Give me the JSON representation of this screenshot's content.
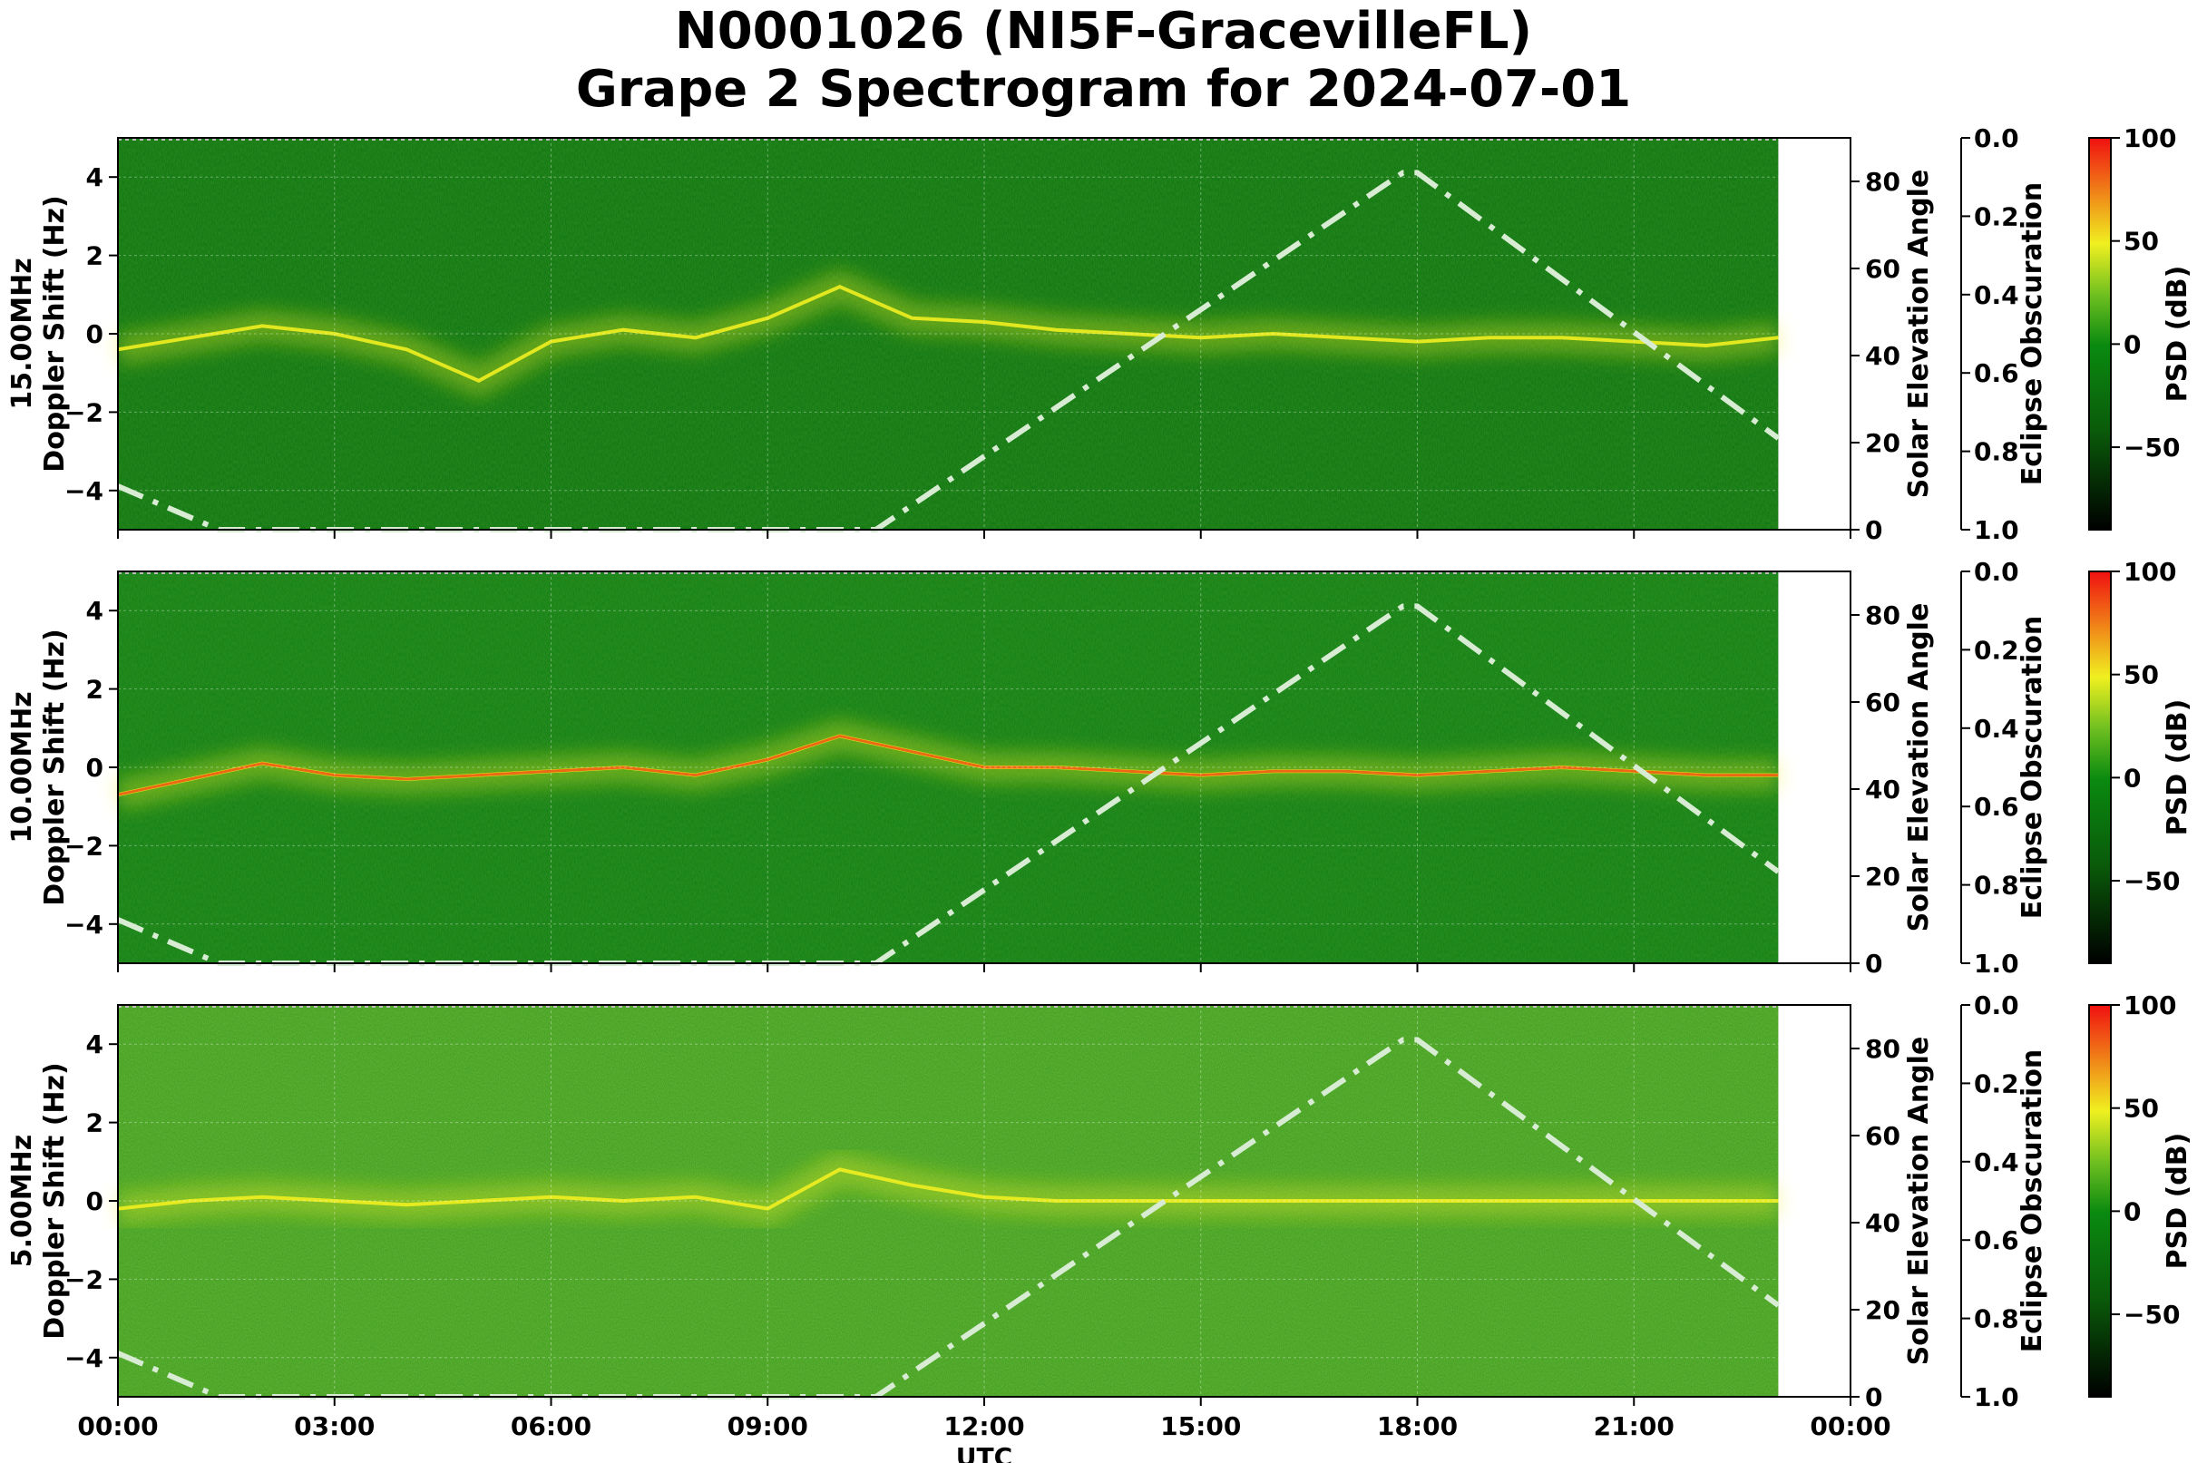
{
  "title": {
    "line1": "N0001026 (NI5F-GracevilleFL)",
    "line2": "Grape 2 Spectrogram for 2024-07-01"
  },
  "xaxis": {
    "label": "UTC",
    "ticks": [
      "00:00",
      "03:00",
      "06:00",
      "09:00",
      "12:00",
      "15:00",
      "18:00",
      "21:00",
      "00:00"
    ],
    "range_hours": [
      0,
      24
    ],
    "data_end_hours": 23
  },
  "right_axes": {
    "solar_label": "Solar Elevation Angle",
    "solar_ticks": [
      "0",
      "20",
      "40",
      "60",
      "80"
    ],
    "solar_range": [
      0,
      90
    ],
    "eclipse_label": "Eclipse Obscuration",
    "eclipse_ticks": [
      "0.0",
      "0.2",
      "0.4",
      "0.6",
      "0.8",
      "1.0"
    ],
    "psd_label": "PSD (dB)",
    "psd_ticks": [
      "100",
      "50",
      "0",
      "−50"
    ],
    "psd_range": [
      -90,
      100
    ]
  },
  "colors": {
    "background_green": "#0a7a10",
    "mid_green": "#3aa020",
    "yellow": "#f0f020",
    "red": "#f03010",
    "solar_curve": "#d8ecd4"
  },
  "chart_data": [
    {
      "type": "heatmap",
      "panel": "15MHz",
      "ylabel_line1": "15.00MHz",
      "ylabel_line2": "Doppler Shift (Hz)",
      "ylim": [
        -5,
        5
      ],
      "yticks": [
        "4",
        "2",
        "0",
        "−2",
        "−4"
      ],
      "background": "#0b7410",
      "solar_elevation": {
        "x_hours": [
          0,
          1.4,
          10.5,
          17.8,
          18.0,
          23
        ],
        "y_deg": [
          10,
          0,
          0,
          82,
          82,
          21
        ]
      },
      "trace": {
        "x_hours": [
          0,
          1,
          2,
          3,
          4,
          5,
          6,
          7,
          8,
          9,
          10,
          11,
          12,
          13,
          14,
          15,
          16,
          17,
          18,
          19,
          20,
          21,
          22,
          23
        ],
        "y_hz": [
          -0.4,
          -0.1,
          0.2,
          0.0,
          -0.4,
          -1.2,
          -0.2,
          0.1,
          -0.1,
          0.4,
          1.2,
          0.4,
          0.3,
          0.1,
          0.0,
          -0.1,
          0.0,
          -0.1,
          -0.2,
          -0.1,
          -0.1,
          -0.2,
          -0.3,
          -0.1
        ]
      }
    },
    {
      "type": "heatmap",
      "panel": "10MHz",
      "ylabel_line1": "10.00MHz",
      "ylabel_line2": "Doppler Shift (Hz)",
      "ylim": [
        -5,
        5
      ],
      "yticks": [
        "4",
        "2",
        "0",
        "−2",
        "−4"
      ],
      "background": "#0f7e14",
      "solar_elevation": {
        "x_hours": [
          0,
          1.4,
          10.5,
          17.8,
          18.0,
          23
        ],
        "y_deg": [
          10,
          0,
          0,
          82,
          82,
          21
        ]
      },
      "trace": {
        "x_hours": [
          0,
          1,
          2,
          3,
          4,
          5,
          6,
          7,
          8,
          9,
          10,
          11,
          12,
          13,
          14,
          15,
          16,
          17,
          18,
          19,
          20,
          21,
          22,
          23
        ],
        "y_hz": [
          -0.7,
          -0.3,
          0.1,
          -0.2,
          -0.3,
          -0.2,
          -0.1,
          0.0,
          -0.2,
          0.2,
          0.8,
          0.4,
          0.0,
          0.0,
          -0.1,
          -0.2,
          -0.1,
          -0.1,
          -0.2,
          -0.1,
          0.0,
          -0.1,
          -0.2,
          -0.2
        ]
      }
    },
    {
      "type": "heatmap",
      "panel": "5MHz",
      "ylabel_line1": "5.00MHz",
      "ylabel_line2": "Doppler Shift (Hz)",
      "ylim": [
        -5,
        5
      ],
      "yticks": [
        "4",
        "2",
        "0",
        "−2",
        "−4"
      ],
      "background": "#3a9a1e",
      "solar_elevation": {
        "x_hours": [
          0,
          1.4,
          10.5,
          17.8,
          18.0,
          23
        ],
        "y_deg": [
          10,
          0,
          0,
          82,
          82,
          21
        ]
      },
      "trace": {
        "x_hours": [
          0,
          1,
          2,
          3,
          4,
          5,
          6,
          7,
          8,
          9,
          10,
          11,
          12,
          13,
          14,
          15,
          16,
          17,
          18,
          19,
          20,
          21,
          22,
          23
        ],
        "y_hz": [
          -0.2,
          0.0,
          0.1,
          0.0,
          -0.1,
          0.0,
          0.1,
          0.0,
          0.1,
          -0.2,
          0.8,
          0.4,
          0.1,
          0.0,
          0.0,
          0.0,
          0.0,
          0.0,
          0.0,
          0.0,
          0.0,
          0.0,
          0.0,
          0.0
        ]
      }
    }
  ]
}
